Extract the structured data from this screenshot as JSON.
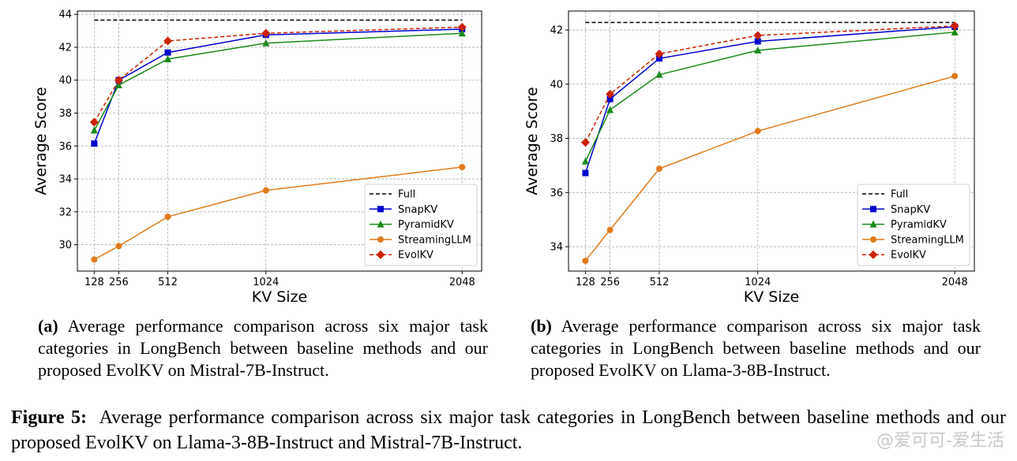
{
  "chart_data": [
    {
      "type": "line",
      "x": [
        128,
        256,
        512,
        1024,
        2048
      ],
      "xticks": [
        "128",
        "256",
        "512",
        "1024",
        "2048"
      ],
      "xlabel": "KV Size",
      "ylabel": "Average Score",
      "xlim": [
        40,
        2150
      ],
      "ylim": [
        28.4,
        44.2
      ],
      "yticks": [
        30,
        32,
        34,
        36,
        38,
        40,
        42,
        44
      ],
      "grid": true,
      "legend_position": "lower-right",
      "series": [
        {
          "name": "Full",
          "values": [
            43.65,
            43.65,
            43.65,
            43.65,
            43.65
          ],
          "color": "#000000",
          "dash": true,
          "marker": "none"
        },
        {
          "name": "SnapKV",
          "values": [
            36.15,
            40.0,
            41.68,
            42.75,
            43.1
          ],
          "color": "#0000cc",
          "dash": false,
          "marker": "square"
        },
        {
          "name": "PyramidKV",
          "values": [
            36.95,
            39.7,
            41.28,
            42.25,
            42.85
          ],
          "color": "#1a8a1a",
          "dash": false,
          "marker": "triangle"
        },
        {
          "name": "StreamingLLM",
          "values": [
            29.1,
            29.92,
            31.7,
            33.3,
            34.72
          ],
          "color": "#e07b1a",
          "dash": false,
          "marker": "circle"
        },
        {
          "name": "EvolKV",
          "values": [
            37.45,
            40.0,
            42.38,
            42.85,
            43.22
          ],
          "color": "#cc2200",
          "dash": true,
          "marker": "diamond"
        }
      ]
    },
    {
      "type": "line",
      "x": [
        128,
        256,
        512,
        1024,
        2048
      ],
      "xticks": [
        "128",
        "256",
        "512",
        "1024",
        "2048"
      ],
      "xlabel": "KV Size",
      "ylabel": "Average Score",
      "xlim": [
        40,
        2150
      ],
      "ylim": [
        33.1,
        42.7
      ],
      "yticks": [
        34,
        36,
        38,
        40,
        42
      ],
      "grid": true,
      "legend_position": "lower-right",
      "series": [
        {
          "name": "Full",
          "values": [
            42.28,
            42.28,
            42.28,
            42.28,
            42.28
          ],
          "color": "#000000",
          "dash": true,
          "marker": "none"
        },
        {
          "name": "SnapKV",
          "values": [
            36.72,
            39.45,
            40.95,
            41.58,
            42.12
          ],
          "color": "#0000cc",
          "dash": false,
          "marker": "square"
        },
        {
          "name": "PyramidKV",
          "values": [
            37.15,
            39.05,
            40.35,
            41.25,
            41.92
          ],
          "color": "#1a8a1a",
          "dash": false,
          "marker": "triangle"
        },
        {
          "name": "StreamingLLM",
          "values": [
            33.48,
            34.62,
            36.88,
            38.27,
            40.3
          ],
          "color": "#e07b1a",
          "dash": false,
          "marker": "circle"
        },
        {
          "name": "EvolKV",
          "values": [
            37.85,
            39.63,
            41.12,
            41.8,
            42.15
          ],
          "color": "#cc2200",
          "dash": true,
          "marker": "diamond"
        }
      ]
    }
  ],
  "captions": {
    "a_label": "(a)",
    "a_text": "Average performance comparison across six major task categories in LongBench between baseline methods and our proposed EvolKV on Mistral-7B-Instruct.",
    "b_label": "(b)",
    "b_text": "Average performance comparison across six major task categories in LongBench between baseline methods and our proposed EvolKV on Llama-3-8B-Instruct.",
    "figure_label": "Figure 5:",
    "figure_text": "Average performance comparison across six major task categories in LongBench between baseline methods and our proposed EvolKV on Llama-3-8B-Instruct and Mistral-7B-Instruct."
  },
  "watermark": "@爱可可-爱生活"
}
